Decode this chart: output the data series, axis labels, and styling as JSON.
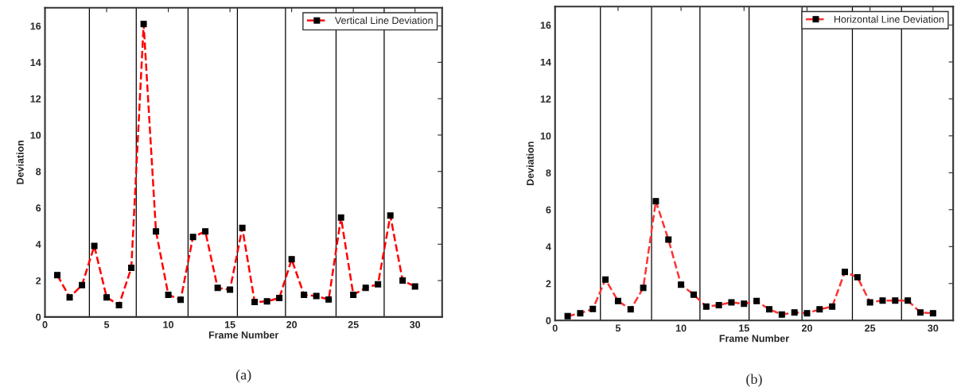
{
  "chart_data": [
    {
      "type": "line",
      "xlabel": "Frame Number",
      "ylabel": "Deviation",
      "x": [
        1,
        2,
        3,
        4,
        5,
        6,
        7,
        8,
        9,
        10,
        11,
        12,
        13,
        14,
        15,
        16,
        17,
        18,
        19,
        20,
        21,
        22,
        23,
        24,
        25,
        26,
        27,
        28,
        29,
        30
      ],
      "series": [
        {
          "name": "Vertical Line Deviation",
          "color": "#ff0000",
          "values": [
            2.3,
            1.08,
            1.75,
            3.9,
            1.08,
            0.65,
            2.7,
            16.1,
            4.7,
            1.22,
            0.94,
            4.4,
            4.7,
            1.6,
            1.5,
            4.9,
            0.82,
            0.86,
            1.04,
            3.17,
            1.22,
            1.15,
            0.96,
            5.47,
            1.22,
            1.6,
            1.8,
            5.57,
            2.0,
            1.68
          ]
        }
      ],
      "xlim": [
        0,
        32.2
      ],
      "ylim": [
        0,
        17
      ],
      "xticks": [
        0,
        5,
        10,
        15,
        20,
        25,
        30
      ],
      "yticks": [
        0,
        2,
        4,
        6,
        8,
        10,
        12,
        14,
        16
      ],
      "ref_lines": [
        {
          "axis": "x",
          "value": 3.6,
          "color": "#000000"
        },
        {
          "axis": "x",
          "value": 7.4,
          "color": "#000000"
        },
        {
          "axis": "x",
          "value": 11.6,
          "color": "#000000"
        },
        {
          "axis": "x",
          "value": 15.6,
          "color": "#000000"
        },
        {
          "axis": "x",
          "value": 19.5,
          "color": "#000000"
        },
        {
          "axis": "x",
          "value": 23.6,
          "color": "#000000"
        },
        {
          "axis": "x",
          "value": 27.5,
          "color": "#000000"
        }
      ],
      "marker": "square",
      "line_style": "dashed",
      "legend": "top right",
      "grid": false,
      "annotations": [
        "(a)"
      ]
    },
    {
      "type": "line",
      "xlabel": "Frame Number",
      "ylabel": "Deviation",
      "x": [
        1,
        2,
        3,
        4,
        5,
        6,
        7,
        8,
        9,
        10,
        11,
        12,
        13,
        14,
        15,
        16,
        17,
        18,
        19,
        20,
        21,
        22,
        23,
        24,
        25,
        26,
        27,
        28,
        29,
        30
      ],
      "series": [
        {
          "name": "Horizontal Line Deviation",
          "color": "#ff3333",
          "values": [
            0.24,
            0.39,
            0.62,
            2.22,
            1.05,
            0.6,
            1.76,
            6.46,
            4.38,
            1.94,
            1.4,
            0.75,
            0.83,
            0.98,
            0.9,
            1.05,
            0.6,
            0.32,
            0.43,
            0.39,
            0.6,
            0.75,
            2.63,
            2.34,
            0.98,
            1.08,
            1.08,
            1.08,
            0.43,
            0.39
          ]
        }
      ],
      "xlim": [
        0,
        31.6
      ],
      "ylim": [
        0,
        17
      ],
      "xticks": [
        0,
        5,
        10,
        15,
        20,
        25,
        30
      ],
      "yticks": [
        0,
        2,
        4,
        6,
        8,
        10,
        12,
        14,
        16
      ],
      "ref_lines": [
        {
          "axis": "x",
          "value": 3.6,
          "color": "#000000"
        },
        {
          "axis": "x",
          "value": 7.66,
          "color": "#000000"
        },
        {
          "axis": "x",
          "value": 11.5,
          "color": "#000000"
        },
        {
          "axis": "x",
          "value": 15.4,
          "color": "#000000"
        },
        {
          "axis": "x",
          "value": 19.6,
          "color": "#000000"
        },
        {
          "axis": "x",
          "value": 23.6,
          "color": "#000000"
        },
        {
          "axis": "x",
          "value": 27.5,
          "color": "#000000"
        }
      ],
      "marker": "square",
      "line_style": "dashed",
      "legend": "top right",
      "grid": false,
      "annotations": [
        "(b)"
      ]
    }
  ]
}
